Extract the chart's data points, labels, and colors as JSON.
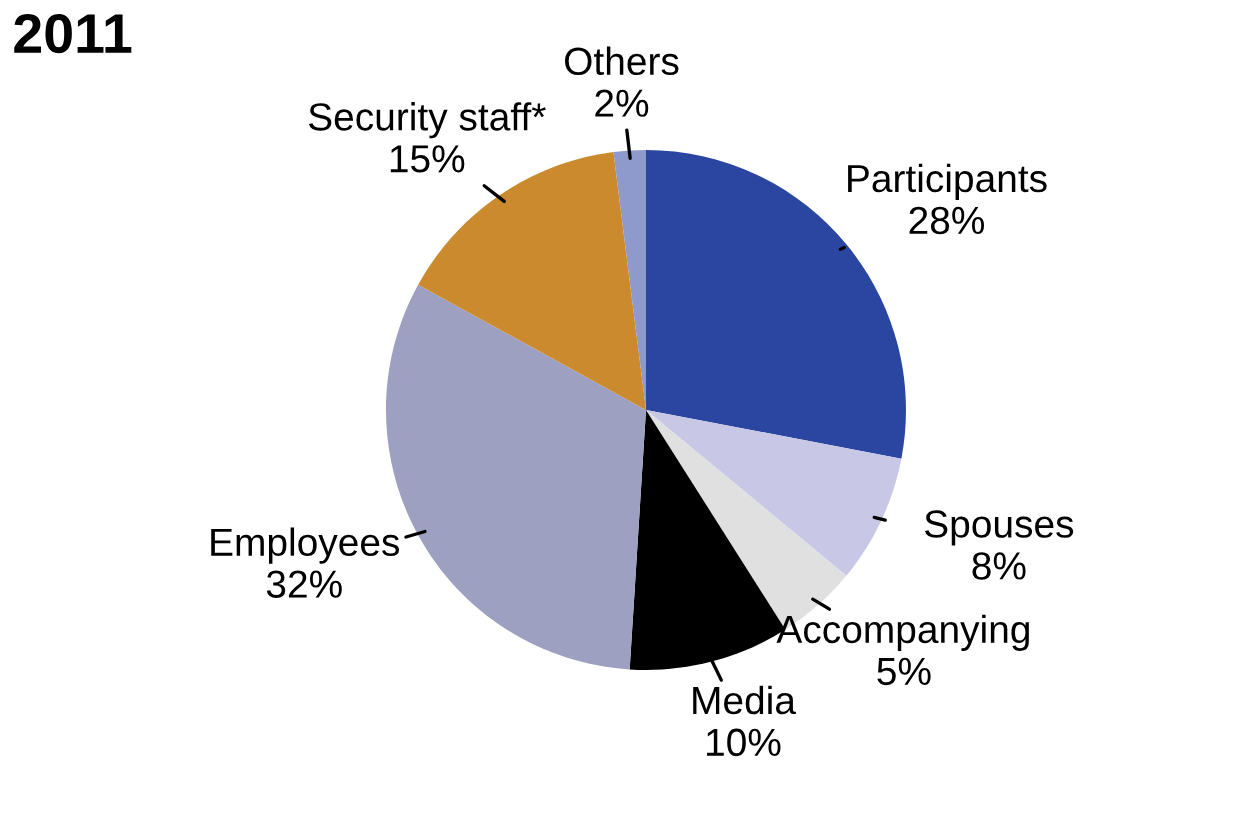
{
  "chart_data": {
    "type": "pie",
    "title": "2011",
    "categories": [
      "Participants",
      "Spouses",
      "Accompanying",
      "Media",
      "Employees",
      "Security staff*",
      "Others"
    ],
    "values": [
      28,
      8,
      5,
      10,
      32,
      15,
      2
    ],
    "value_labels": [
      "28%",
      "8%",
      "5%",
      "10%",
      "32%",
      "15%",
      "2%"
    ],
    "colors": [
      "#2b46a0",
      "#c8c8e6",
      "#e0e0e0",
      "#000000",
      "#9da0c0",
      "#cc8a2e",
      "#8e9acb"
    ],
    "legend": false
  }
}
